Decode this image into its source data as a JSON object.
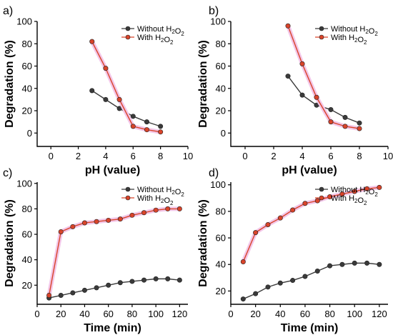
{
  "colors": {
    "without": "#3a3a3a",
    "with": "#d9442a",
    "halo": "#f3c6e8"
  },
  "legend": {
    "without": "Without H2O2",
    "with": "With H2O2"
  },
  "chart_data": [
    {
      "panel": "a)",
      "type": "line",
      "xlabel": "pH (value)",
      "ylabel": "Degradation (%)",
      "xlim": [
        -1,
        10
      ],
      "ylim": [
        -12,
        100
      ],
      "xticks": [
        0,
        2,
        4,
        6,
        8,
        10
      ],
      "yticks": [
        0,
        20,
        40,
        60,
        80,
        100
      ],
      "series": [
        {
          "name": "Without H2O2",
          "x": [
            3,
            4,
            5,
            6,
            7,
            8
          ],
          "y": [
            38,
            30,
            22,
            15,
            10,
            6
          ]
        },
        {
          "name": "With H2O2",
          "x": [
            3,
            4,
            5,
            6,
            7,
            8
          ],
          "y": [
            82,
            58,
            30,
            6,
            3,
            1
          ]
        }
      ]
    },
    {
      "panel": "b)",
      "type": "line",
      "xlabel": "pH (value)",
      "ylabel": "Degradation (%)",
      "xlim": [
        -1,
        10
      ],
      "ylim": [
        -12,
        100
      ],
      "xticks": [
        0,
        2,
        4,
        6,
        8,
        10
      ],
      "yticks": [
        0,
        20,
        40,
        60,
        80,
        100
      ],
      "series": [
        {
          "name": "Without H2O2",
          "x": [
            3,
            4,
            5,
            6,
            7,
            8
          ],
          "y": [
            51,
            34,
            25,
            21,
            14,
            9
          ]
        },
        {
          "name": "With H2O2",
          "x": [
            3,
            4,
            5,
            6,
            7,
            8
          ],
          "y": [
            96,
            62,
            32,
            10,
            6,
            4
          ]
        }
      ]
    },
    {
      "panel": "c)",
      "type": "line",
      "xlabel": "Time (min)",
      "ylabel": "Degradation (%)",
      "xlim": [
        0,
        127
      ],
      "ylim": [
        5,
        101
      ],
      "xticks": [
        0,
        20,
        40,
        60,
        80,
        100,
        120
      ],
      "yticks": [
        20,
        40,
        60,
        80,
        100
      ],
      "series": [
        {
          "name": "Without H2O2",
          "x": [
            10,
            20,
            30,
            40,
            50,
            60,
            70,
            80,
            90,
            100,
            110,
            120
          ],
          "y": [
            10,
            12,
            14,
            16,
            18,
            20,
            22,
            23,
            24,
            25,
            25,
            24
          ]
        },
        {
          "name": "With H2O2",
          "x": [
            10,
            20,
            30,
            40,
            50,
            60,
            70,
            80,
            90,
            100,
            110,
            120
          ],
          "y": [
            12,
            62,
            66,
            69,
            70,
            71,
            72,
            75,
            77,
            79,
            80,
            80
          ]
        }
      ]
    },
    {
      "panel": "d)",
      "type": "line",
      "xlabel": "Time (min)",
      "ylabel": "Degradation (%)",
      "xlim": [
        0,
        127
      ],
      "ylim": [
        10,
        102
      ],
      "xticks": [
        0,
        20,
        40,
        60,
        80,
        100,
        120
      ],
      "yticks": [
        20,
        40,
        60,
        80,
        100
      ],
      "series": [
        {
          "name": "Without H2O2",
          "x": [
            10,
            20,
            30,
            40,
            50,
            60,
            70,
            80,
            90,
            100,
            110,
            120
          ],
          "y": [
            14,
            18,
            23,
            26,
            28,
            31,
            35,
            39,
            40,
            41,
            41,
            40
          ]
        },
        {
          "name": "With H2O2",
          "x": [
            10,
            20,
            30,
            40,
            50,
            60,
            70,
            80,
            90,
            100,
            110,
            120
          ],
          "y": [
            42,
            64,
            70,
            75,
            81,
            86,
            88,
            91,
            93,
            95,
            97,
            98
          ]
        }
      ]
    }
  ]
}
